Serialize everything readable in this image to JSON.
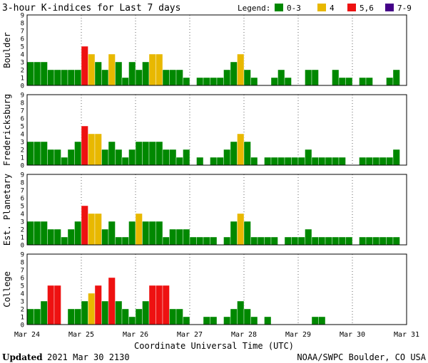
{
  "chart_data": {
    "type": "bar",
    "title": "3-hour K-indices for Last 7 days",
    "xlabel": "Coordinate Universal Time (UTC)",
    "ylim": [
      0,
      9
    ],
    "y_ticks": [
      "0",
      "1",
      "2",
      "3",
      "4",
      "5",
      "6",
      "7",
      "8",
      "9"
    ],
    "x_ticks": [
      "Mar 24",
      "Mar 25",
      "Mar 26",
      "Mar 27",
      "Mar 28",
      "Mar 29",
      "Mar 30",
      "Mar 31"
    ],
    "grid": true,
    "legend": {
      "title": "Legend:",
      "placement": "top-right",
      "entries": [
        {
          "label": "0-3",
          "color": "#008800"
        },
        {
          "label": "4",
          "color": "#e8b800"
        },
        {
          "label": "5,6",
          "color": "#ee1111"
        },
        {
          "label": "7-9",
          "color": "#440088"
        }
      ]
    },
    "series": [
      {
        "name": "Boulder",
        "values": [
          3,
          3,
          3,
          2,
          2,
          2,
          2,
          2,
          5,
          4,
          3,
          2,
          4,
          3,
          1,
          3,
          2,
          3,
          4,
          4,
          2,
          2,
          2,
          1,
          0,
          1,
          1,
          1,
          1,
          2,
          3,
          4,
          2,
          1,
          0,
          0,
          1,
          2,
          1,
          0,
          0,
          2,
          2,
          0,
          0,
          2,
          1,
          1,
          0,
          1,
          1,
          0,
          0,
          1,
          2,
          0
        ]
      },
      {
        "name": "Fredericksburg",
        "values": [
          3,
          3,
          3,
          2,
          2,
          1,
          2,
          3,
          5,
          4,
          4,
          2,
          3,
          2,
          1,
          2,
          3,
          3,
          3,
          3,
          2,
          2,
          1,
          2,
          0,
          1,
          0,
          1,
          1,
          2,
          3,
          4,
          3,
          1,
          0,
          1,
          1,
          1,
          1,
          1,
          1,
          2,
          1,
          1,
          1,
          1,
          1,
          0,
          0,
          1,
          1,
          1,
          1,
          1,
          2,
          0
        ]
      },
      {
        "name": "Est. Planetary",
        "values": [
          3,
          3,
          3,
          2,
          2,
          1,
          2,
          3,
          5,
          4,
          4,
          2,
          3,
          1,
          1,
          3,
          4,
          3,
          3,
          3,
          1,
          2,
          2,
          2,
          1,
          1,
          1,
          1,
          0,
          1,
          3,
          4,
          3,
          1,
          1,
          1,
          1,
          0,
          1,
          1,
          1,
          2,
          1,
          1,
          1,
          1,
          1,
          1,
          0,
          1,
          1,
          1,
          1,
          1,
          1,
          0
        ]
      },
      {
        "name": "College",
        "values": [
          2,
          2,
          3,
          5,
          5,
          0,
          2,
          2,
          3,
          4,
          5,
          3,
          6,
          3,
          2,
          1,
          2,
          3,
          5,
          5,
          5,
          2,
          2,
          1,
          0,
          0,
          1,
          1,
          0,
          1,
          2,
          3,
          2,
          1,
          0,
          1,
          0,
          0,
          0,
          0,
          0,
          0,
          1,
          1,
          0,
          0,
          0,
          0,
          0,
          0,
          0,
          0,
          0,
          0,
          0,
          0
        ]
      }
    ]
  },
  "footer": {
    "updated_label": "Updated",
    "updated_value": "2021 Mar 30 2130",
    "credit": "NOAA/SWPC Boulder, CO USA"
  }
}
